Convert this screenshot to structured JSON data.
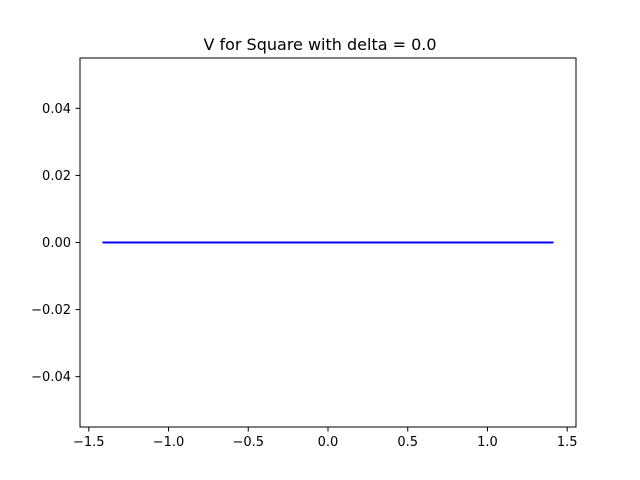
{
  "chart_data": {
    "type": "line",
    "title": "V for Square with delta = 0.0",
    "xlabel": "",
    "ylabel": "",
    "xlim": [
      -1.555,
      1.555
    ],
    "ylim": [
      -0.055,
      0.055
    ],
    "grid": false,
    "x_ticks": [
      {
        "value": -1.5,
        "label": "−1.5"
      },
      {
        "value": -1.0,
        "label": "−1.0"
      },
      {
        "value": -0.5,
        "label": "−0.5"
      },
      {
        "value": 0.0,
        "label": "0.0"
      },
      {
        "value": 0.5,
        "label": "0.5"
      },
      {
        "value": 1.0,
        "label": "1.0"
      },
      {
        "value": 1.5,
        "label": "1.5"
      }
    ],
    "y_ticks": [
      {
        "value": 0.04,
        "label": "0.04"
      },
      {
        "value": 0.02,
        "label": "0.02"
      },
      {
        "value": 0.0,
        "label": "0.00"
      },
      {
        "value": -0.02,
        "label": "−0.02"
      },
      {
        "value": -0.04,
        "label": "−0.04"
      }
    ],
    "series": [
      {
        "color": "#0000ff",
        "x": [
          -1.414,
          -1.0,
          -0.5,
          0.0,
          0.5,
          1.0,
          1.414
        ],
        "y": [
          0.0,
          0.0,
          0.0,
          0.0,
          0.0,
          0.0,
          0.0
        ]
      }
    ]
  }
}
